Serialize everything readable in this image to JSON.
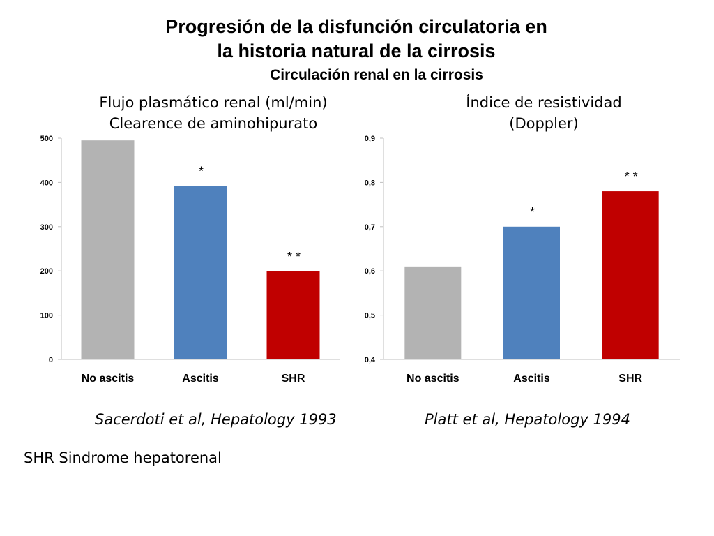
{
  "slide": {
    "title_line1": "Progresión de la disfunción circulatoria en",
    "title_line2": "la historia natural de la cirrosis",
    "subtitle": "Circulación renal en la cirrosis",
    "footnote": "SHR Sindrome hepatorenal"
  },
  "colors": {
    "no_ascitis": "#b3b3b3",
    "ascitis": "#4f81bd",
    "shr": "#c00000",
    "axis": "#bfbfbf"
  },
  "charts": [
    {
      "heading_line1": "Flujo plasmático renal (ml/min)",
      "heading_line2": "Clearence de aminohipurato",
      "citation": "Sacerdoti et al, Hepatology 1993"
    },
    {
      "heading_line1": "Índice de resistividad",
      "heading_line2": "(Doppler)",
      "citation": "Platt et al, Hepatology 1994"
    }
  ],
  "chart_data": [
    {
      "type": "bar",
      "title": "Flujo plasmático renal (ml/min) Clearence de aminohipurato",
      "categories": [
        "No ascitis",
        "Ascitis",
        "SHR"
      ],
      "values": [
        495,
        392,
        199
      ],
      "significance": [
        "",
        "*",
        "* *"
      ],
      "ylim": [
        0,
        500
      ],
      "yticks": [
        0,
        100,
        200,
        300,
        400,
        500
      ],
      "ytick_labels": [
        "0",
        "100",
        "200",
        "300",
        "400",
        "500"
      ],
      "grid": false,
      "legend": "none"
    },
    {
      "type": "bar",
      "title": "Índice de resistividad (Doppler)",
      "categories": [
        "No ascitis",
        "Ascitis",
        "SHR"
      ],
      "values": [
        0.61,
        0.7,
        0.78
      ],
      "significance": [
        "",
        "*",
        "* *"
      ],
      "ylim": [
        0.4,
        0.9
      ],
      "yticks": [
        0.4,
        0.5,
        0.6,
        0.7,
        0.8,
        0.9
      ],
      "ytick_labels": [
        "0,4",
        "0,5",
        "0,6",
        "0,7",
        "0,8",
        "0,9"
      ],
      "grid": false,
      "legend": "none"
    }
  ]
}
